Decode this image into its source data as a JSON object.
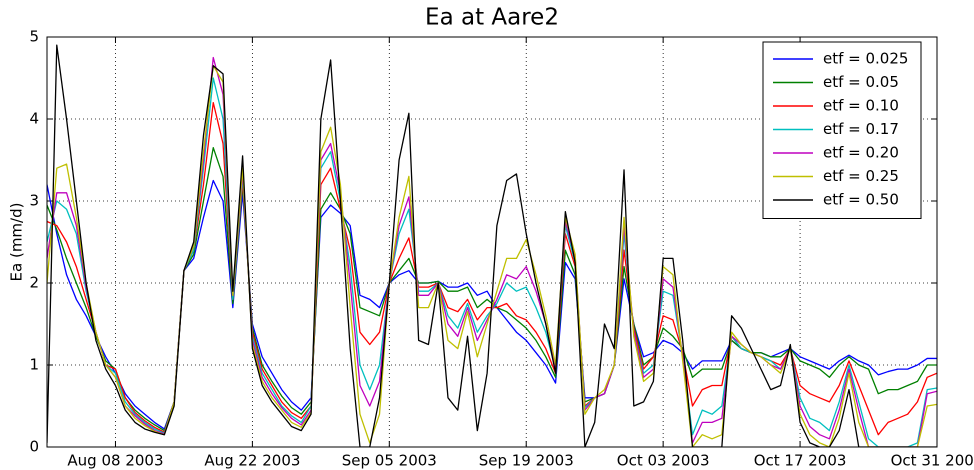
{
  "chart_data": {
    "type": "line",
    "title": "Ea at Aare2",
    "ylabel": "Ea (mm/d)",
    "x": [
      "2003-08-01",
      "2003-08-02",
      "2003-08-03",
      "2003-08-04",
      "2003-08-05",
      "2003-08-06",
      "2003-08-07",
      "2003-08-08",
      "2003-08-09",
      "2003-08-10",
      "2003-08-11",
      "2003-08-12",
      "2003-08-13",
      "2003-08-14",
      "2003-08-15",
      "2003-08-16",
      "2003-08-17",
      "2003-08-18",
      "2003-08-19",
      "2003-08-20",
      "2003-08-21",
      "2003-08-22",
      "2003-08-23",
      "2003-08-24",
      "2003-08-25",
      "2003-08-26",
      "2003-08-27",
      "2003-08-28",
      "2003-08-29",
      "2003-08-30",
      "2003-08-31",
      "2003-09-01",
      "2003-09-02",
      "2003-09-03",
      "2003-09-04",
      "2003-09-05",
      "2003-09-06",
      "2003-09-07",
      "2003-09-08",
      "2003-09-09",
      "2003-09-10",
      "2003-09-11",
      "2003-09-12",
      "2003-09-13",
      "2003-09-14",
      "2003-09-15",
      "2003-09-16",
      "2003-09-17",
      "2003-09-18",
      "2003-09-19",
      "2003-09-20",
      "2003-09-21",
      "2003-09-22",
      "2003-09-23",
      "2003-09-24",
      "2003-09-25",
      "2003-09-26",
      "2003-09-27",
      "2003-09-28",
      "2003-09-29",
      "2003-09-30",
      "2003-10-01",
      "2003-10-02",
      "2003-10-03",
      "2003-10-04",
      "2003-10-05",
      "2003-10-06",
      "2003-10-07",
      "2003-10-08",
      "2003-10-09",
      "2003-10-10",
      "2003-10-11",
      "2003-10-12",
      "2003-10-13",
      "2003-10-14",
      "2003-10-15",
      "2003-10-16",
      "2003-10-17",
      "2003-10-18",
      "2003-10-19",
      "2003-10-20",
      "2003-10-21",
      "2003-10-22",
      "2003-10-23",
      "2003-10-24",
      "2003-10-25",
      "2003-10-26",
      "2003-10-27",
      "2003-10-28",
      "2003-10-29",
      "2003-10-30",
      "2003-10-31"
    ],
    "xlim": [
      "2003-08-01",
      "2003-10-31"
    ],
    "xticks": [
      {
        "value": "2003-08-08",
        "label": "Aug 08 2003"
      },
      {
        "value": "2003-08-22",
        "label": "Aug 22 2003"
      },
      {
        "value": "2003-09-05",
        "label": "Sep 05 2003"
      },
      {
        "value": "2003-09-19",
        "label": "Sep 19 2003"
      },
      {
        "value": "2003-10-03",
        "label": "Oct 03 2003"
      },
      {
        "value": "2003-10-17",
        "label": "Oct 17 2003"
      },
      {
        "value": "2003-10-31",
        "label": "Oct 31 2003"
      }
    ],
    "ylim": [
      0,
      5
    ],
    "yticks": [
      0,
      1,
      2,
      3,
      4,
      5
    ],
    "grid": true,
    "legend": "upper-right",
    "series": [
      {
        "name": "etf = 0.025",
        "color": "#0000ff",
        "values": [
          3.2,
          2.6,
          2.1,
          1.8,
          1.6,
          1.35,
          1.1,
          0.9,
          0.65,
          0.5,
          0.4,
          0.3,
          0.22,
          0.55,
          2.15,
          2.3,
          2.8,
          3.25,
          3.0,
          1.7,
          3.1,
          1.5,
          1.1,
          0.9,
          0.7,
          0.55,
          0.45,
          0.6,
          2.8,
          2.95,
          2.85,
          2.7,
          1.85,
          1.8,
          1.7,
          2.0,
          2.1,
          2.15,
          2.0,
          2.0,
          2.02,
          1.95,
          1.95,
          2.0,
          1.85,
          1.9,
          1.7,
          1.55,
          1.4,
          1.3,
          1.15,
          1.0,
          0.78,
          2.25,
          2.05,
          0.6,
          0.6,
          0.65,
          1.0,
          2.05,
          1.5,
          1.1,
          1.15,
          1.3,
          1.25,
          1.15,
          0.95,
          1.05,
          1.05,
          1.05,
          1.3,
          1.2,
          1.15,
          1.15,
          1.1,
          1.15,
          1.2,
          1.1,
          1.05,
          1.0,
          0.95,
          1.05,
          1.12,
          1.05,
          1.0,
          0.88,
          0.92,
          0.95,
          0.95,
          1.0,
          1.08,
          1.08
        ]
      },
      {
        "name": "etf = 0.05",
        "color": "#008000",
        "values": [
          2.95,
          2.65,
          2.3,
          2.0,
          1.7,
          1.35,
          1.05,
          0.95,
          0.6,
          0.45,
          0.35,
          0.27,
          0.2,
          0.55,
          2.15,
          2.35,
          3.0,
          3.65,
          3.3,
          1.75,
          3.2,
          1.45,
          1.0,
          0.8,
          0.62,
          0.48,
          0.4,
          0.55,
          2.9,
          3.1,
          2.9,
          2.6,
          1.7,
          1.65,
          1.6,
          2.0,
          2.15,
          2.3,
          2.0,
          2.0,
          2.02,
          1.9,
          1.9,
          1.95,
          1.7,
          1.8,
          1.7,
          1.65,
          1.55,
          1.45,
          1.3,
          1.1,
          0.85,
          2.4,
          2.1,
          0.55,
          0.6,
          0.65,
          1.0,
          2.2,
          1.5,
          1.0,
          1.1,
          1.45,
          1.35,
          1.2,
          0.85,
          0.95,
          0.95,
          0.95,
          1.3,
          1.2,
          1.15,
          1.15,
          1.1,
          1.1,
          1.2,
          1.05,
          1.0,
          0.95,
          0.85,
          1.0,
          1.1,
          1.0,
          0.95,
          0.65,
          0.7,
          0.7,
          0.75,
          0.8,
          1.0,
          1.0
        ]
      },
      {
        "name": "etf = 0.10",
        "color": "#ff0000",
        "values": [
          2.75,
          2.7,
          2.5,
          2.2,
          1.8,
          1.4,
          1.0,
          0.95,
          0.6,
          0.42,
          0.32,
          0.24,
          0.18,
          0.55,
          2.15,
          2.4,
          3.2,
          4.2,
          3.7,
          1.8,
          3.25,
          1.4,
          0.95,
          0.75,
          0.55,
          0.42,
          0.35,
          0.5,
          3.2,
          3.4,
          2.9,
          2.4,
          1.4,
          1.25,
          1.4,
          2.0,
          2.3,
          2.55,
          1.95,
          1.95,
          2.0,
          1.7,
          1.65,
          1.8,
          1.55,
          1.7,
          1.7,
          1.75,
          1.6,
          1.55,
          1.4,
          1.2,
          0.9,
          2.6,
          2.2,
          0.5,
          0.6,
          0.65,
          1.0,
          2.4,
          1.45,
          0.95,
          1.1,
          1.6,
          1.55,
          1.15,
          0.5,
          0.7,
          0.75,
          0.75,
          1.35,
          1.2,
          1.15,
          1.1,
          1.05,
          1.0,
          1.2,
          0.75,
          0.65,
          0.6,
          0.55,
          0.75,
          1.05,
          0.75,
          0.45,
          0.15,
          0.3,
          0.35,
          0.4,
          0.55,
          0.85,
          0.9
        ]
      },
      {
        "name": "etf = 0.17",
        "color": "#00bfbf",
        "values": [
          2.5,
          3.0,
          2.9,
          2.6,
          1.9,
          1.4,
          1.0,
          0.9,
          0.55,
          0.4,
          0.3,
          0.22,
          0.17,
          0.55,
          2.15,
          2.4,
          3.4,
          4.5,
          4.0,
          1.8,
          3.3,
          1.35,
          0.9,
          0.7,
          0.5,
          0.38,
          0.3,
          0.5,
          3.4,
          3.6,
          3.0,
          2.2,
          1.0,
          0.7,
          1.0,
          2.0,
          2.6,
          2.9,
          1.9,
          1.9,
          2.0,
          1.6,
          1.45,
          1.75,
          1.4,
          1.6,
          1.75,
          2.0,
          1.9,
          1.95,
          1.7,
          1.4,
          0.95,
          2.7,
          2.25,
          0.48,
          0.6,
          0.65,
          1.0,
          2.6,
          1.4,
          0.9,
          1.0,
          1.9,
          1.85,
          1.1,
          0.15,
          0.45,
          0.4,
          0.5,
          1.35,
          1.2,
          1.15,
          1.1,
          1.05,
          0.95,
          1.2,
          0.6,
          0.35,
          0.3,
          0.2,
          0.55,
          1.0,
          0.55,
          0.1,
          0,
          0,
          0,
          0,
          0.05,
          0.7,
          0.72
        ]
      },
      {
        "name": "etf = 0.20",
        "color": "#bf00bf",
        "values": [
          2.3,
          3.1,
          3.1,
          2.7,
          1.95,
          1.4,
          1.0,
          0.85,
          0.5,
          0.38,
          0.28,
          0.2,
          0.16,
          0.55,
          2.15,
          2.45,
          3.5,
          4.75,
          4.3,
          1.85,
          3.35,
          1.3,
          0.85,
          0.65,
          0.48,
          0.35,
          0.27,
          0.45,
          3.5,
          3.7,
          3.1,
          2.0,
          0.75,
          0.5,
          0.8,
          2.0,
          2.7,
          3.05,
          1.85,
          1.85,
          2.0,
          1.5,
          1.35,
          1.7,
          1.3,
          1.55,
          1.8,
          2.1,
          2.05,
          2.2,
          1.9,
          1.5,
          0.95,
          2.75,
          2.3,
          0.45,
          0.6,
          0.65,
          1.0,
          2.7,
          1.4,
          0.85,
          0.95,
          2.05,
          1.95,
          1.1,
          0.05,
          0.3,
          0.3,
          0.35,
          1.35,
          1.25,
          1.15,
          1.1,
          1.0,
          0.95,
          1.2,
          0.5,
          0.25,
          0.15,
          0.1,
          0.45,
          0.95,
          0.45,
          0,
          0,
          0,
          0,
          0,
          0,
          0.65,
          0.68
        ]
      },
      {
        "name": "etf = 0.25",
        "color": "#bfbf00",
        "values": [
          2.0,
          3.4,
          3.45,
          2.8,
          2.0,
          1.4,
          1.0,
          0.85,
          0.5,
          0.35,
          0.26,
          0.19,
          0.15,
          0.55,
          2.15,
          2.45,
          3.6,
          4.65,
          4.45,
          1.85,
          3.4,
          1.25,
          0.8,
          0.6,
          0.45,
          0.3,
          0.24,
          0.42,
          3.6,
          3.9,
          3.2,
          1.7,
          0.4,
          0.05,
          0.4,
          2.0,
          2.8,
          3.3,
          1.7,
          1.7,
          2.0,
          1.3,
          1.2,
          1.65,
          1.1,
          1.5,
          1.9,
          2.3,
          2.3,
          2.53,
          2.1,
          1.6,
          1.0,
          2.8,
          2.35,
          0.4,
          0.6,
          0.7,
          1.0,
          2.8,
          1.35,
          0.8,
          0.9,
          2.2,
          2.1,
          1.05,
          0,
          0.15,
          0.1,
          0.15,
          1.4,
          1.25,
          1.15,
          1.1,
          1.0,
          0.9,
          1.2,
          0.4,
          0.15,
          0.05,
          0,
          0.35,
          0.9,
          0.3,
          0,
          0,
          0,
          0,
          0,
          0,
          0.5,
          0.52
        ]
      },
      {
        "name": "etf = 0.50",
        "color": "#000000",
        "values": [
          0.05,
          4.9,
          4.0,
          3.0,
          2.0,
          1.3,
          0.95,
          0.75,
          0.45,
          0.3,
          0.22,
          0.18,
          0.15,
          0.5,
          2.15,
          2.5,
          3.8,
          4.65,
          4.55,
          1.9,
          3.55,
          1.2,
          0.75,
          0.55,
          0.4,
          0.25,
          0.2,
          0.4,
          4.0,
          4.72,
          3.0,
          1.2,
          0,
          0,
          0.6,
          2.0,
          3.5,
          4.07,
          1.3,
          1.25,
          2.0,
          0.6,
          0.45,
          1.35,
          0.2,
          0.9,
          2.7,
          3.25,
          3.33,
          2.6,
          2.0,
          1.5,
          0.9,
          2.87,
          2.25,
          0,
          0.3,
          1.5,
          1.2,
          3.38,
          0.5,
          0.55,
          0.8,
          2.3,
          2.3,
          1.3,
          0,
          0,
          0,
          0,
          1.6,
          1.45,
          1.2,
          0.95,
          0.7,
          0.75,
          1.25,
          0.3,
          0.05,
          0,
          0,
          0.2,
          0.7,
          0,
          0,
          0,
          0,
          0,
          0,
          0,
          0,
          0
        ]
      }
    ]
  }
}
